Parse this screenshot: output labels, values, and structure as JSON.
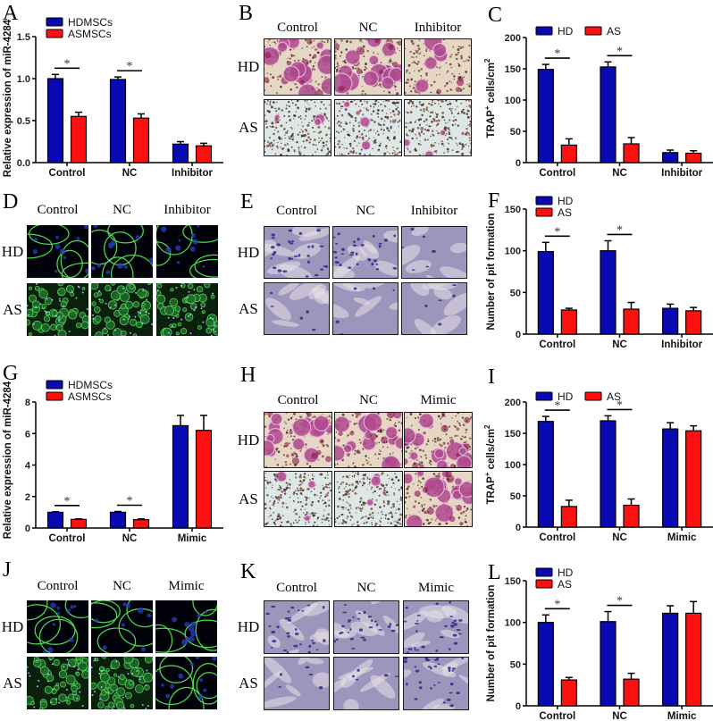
{
  "panels": {
    "A": {
      "letter": "A"
    },
    "B": {
      "letter": "B",
      "columns": [
        "Control",
        "NC",
        "Inhibitor"
      ],
      "rows": [
        "HD",
        "AS"
      ],
      "stain": "TRAP"
    },
    "C": {
      "letter": "C"
    },
    "D": {
      "letter": "D",
      "columns": [
        "Control",
        "NC",
        "Inhibitor"
      ],
      "rows": [
        "HD",
        "AS"
      ],
      "stain": "fluorescence"
    },
    "E": {
      "letter": "E",
      "columns": [
        "Control",
        "NC",
        "Inhibitor"
      ],
      "rows": [
        "HD",
        "AS"
      ],
      "stain": "pit"
    },
    "F": {
      "letter": "F"
    },
    "G": {
      "letter": "G"
    },
    "H": {
      "letter": "H",
      "columns": [
        "Control",
        "NC",
        "Mimic"
      ],
      "rows": [
        "HD",
        "AS"
      ],
      "stain": "TRAP"
    },
    "I": {
      "letter": "I"
    },
    "J": {
      "letter": "J",
      "columns": [
        "Control",
        "NC",
        "Mimic"
      ],
      "rows": [
        "HD",
        "AS"
      ],
      "stain": "fluorescence"
    },
    "K": {
      "letter": "K",
      "columns": [
        "Control",
        "NC",
        "Mimic"
      ],
      "rows": [
        "HD",
        "AS"
      ],
      "stain": "pit"
    },
    "L": {
      "letter": "L"
    }
  },
  "colors": {
    "series1": "#0a0ab4",
    "series2": "#ff1010",
    "axis": "#000000"
  },
  "chart_data": [
    {
      "id": "A",
      "type": "bar",
      "title": "",
      "categories": [
        "Control",
        "NC",
        "Inhibitor"
      ],
      "series": [
        {
          "name": "HDMSCs",
          "values": [
            1.0,
            0.99,
            0.22
          ],
          "errors": [
            0.05,
            0.03,
            0.03
          ]
        },
        {
          "name": "ASMSCs",
          "values": [
            0.55,
            0.53,
            0.2
          ],
          "errors": [
            0.05,
            0.05,
            0.03
          ]
        }
      ],
      "xlabel": "",
      "ylabel": "Relative expression of miR-4284",
      "ylim": [
        0,
        1.5
      ],
      "yticks": [
        "0.0",
        "0.5",
        "1.0",
        "1.5"
      ],
      "ytick_values": [
        0,
        0.5,
        1.0,
        1.5
      ],
      "significance": [
        {
          "category": "Control",
          "label": "*"
        },
        {
          "category": "NC",
          "label": "*"
        }
      ],
      "legend": {
        "position": "top-left",
        "layout": "vertical"
      },
      "grid": false
    },
    {
      "id": "C",
      "type": "bar",
      "title": "",
      "categories": [
        "Control",
        "NC",
        "Inhibitor"
      ],
      "series": [
        {
          "name": "HD",
          "values": [
            149,
            153,
            16
          ],
          "errors": [
            8,
            8,
            4
          ]
        },
        {
          "name": "AS",
          "values": [
            28,
            30,
            15
          ],
          "errors": [
            10,
            10,
            4
          ]
        }
      ],
      "xlabel": "",
      "ylabel": "TRAP+ cells/cm2",
      "ylim": [
        0,
        200
      ],
      "yticks": [
        "0",
        "50",
        "100",
        "150",
        "200"
      ],
      "ytick_values": [
        0,
        50,
        100,
        150,
        200
      ],
      "significance": [
        {
          "category": "Control",
          "label": "*"
        },
        {
          "category": "NC",
          "label": "*"
        }
      ],
      "legend": {
        "position": "top",
        "layout": "horizontal"
      },
      "grid": false
    },
    {
      "id": "F",
      "type": "bar",
      "title": "",
      "categories": [
        "Control",
        "NC",
        "Inhibitor"
      ],
      "series": [
        {
          "name": "HD",
          "values": [
            99,
            100,
            31
          ],
          "errors": [
            11,
            12,
            5
          ]
        },
        {
          "name": "AS",
          "values": [
            29,
            30,
            28
          ],
          "errors": [
            2,
            8,
            4
          ]
        }
      ],
      "xlabel": "",
      "ylabel": "Number of pit formation",
      "ylim": [
        0,
        150
      ],
      "yticks": [
        "0",
        "50",
        "100",
        "150"
      ],
      "ytick_values": [
        0,
        50,
        100,
        150
      ],
      "significance": [
        {
          "category": "Control",
          "label": "*"
        },
        {
          "category": "NC",
          "label": "*"
        }
      ],
      "legend": {
        "position": "top-left",
        "layout": "vertical"
      },
      "grid": false
    },
    {
      "id": "G",
      "type": "bar",
      "title": "",
      "categories": [
        "Control",
        "NC",
        "Mimic"
      ],
      "series": [
        {
          "name": "HDMSCs",
          "values": [
            1.0,
            1.0,
            6.5
          ],
          "errors": [
            0.03,
            0.05,
            0.65
          ]
        },
        {
          "name": "ASMSCs",
          "values": [
            0.55,
            0.53,
            6.2
          ],
          "errors": [
            0.03,
            0.05,
            0.95
          ]
        }
      ],
      "xlabel": "",
      "ylabel": "Relative expression of miR-4284",
      "ylim": [
        0,
        8
      ],
      "yticks": [
        "0",
        "2",
        "4",
        "6",
        "8"
      ],
      "ytick_values": [
        0,
        2,
        4,
        6,
        8
      ],
      "significance": [
        {
          "category": "Control",
          "label": "*"
        },
        {
          "category": "NC",
          "label": "*"
        }
      ],
      "legend": {
        "position": "top-left",
        "layout": "vertical"
      },
      "grid": false
    },
    {
      "id": "I",
      "type": "bar",
      "title": "",
      "categories": [
        "Control",
        "NC",
        "Mimic"
      ],
      "series": [
        {
          "name": "HD",
          "values": [
            169,
            170,
            157
          ],
          "errors": [
            8,
            8,
            10
          ]
        },
        {
          "name": "AS",
          "values": [
            33,
            35,
            154
          ],
          "errors": [
            10,
            10,
            8
          ]
        }
      ],
      "xlabel": "",
      "ylabel": "TRAP+ cells/cm2",
      "ylim": [
        0,
        200
      ],
      "yticks": [
        "0",
        "50",
        "100",
        "150",
        "200"
      ],
      "ytick_values": [
        0,
        50,
        100,
        150,
        200
      ],
      "significance": [
        {
          "category": "Control",
          "label": "*"
        },
        {
          "category": "NC",
          "label": "*"
        }
      ],
      "legend": {
        "position": "top",
        "layout": "horizontal"
      },
      "grid": false
    },
    {
      "id": "L",
      "type": "bar",
      "title": "",
      "categories": [
        "Control",
        "NC",
        "Mimic"
      ],
      "series": [
        {
          "name": "HD",
          "values": [
            100,
            101,
            111
          ],
          "errors": [
            9,
            12,
            9
          ]
        },
        {
          "name": "AS",
          "values": [
            31,
            32,
            111
          ],
          "errors": [
            3,
            7,
            14
          ]
        }
      ],
      "xlabel": "",
      "ylabel": "Number of pit formation",
      "ylim": [
        0,
        150
      ],
      "yticks": [
        "0",
        "50",
        "100",
        "150"
      ],
      "ytick_values": [
        0,
        50,
        100,
        150
      ],
      "significance": [
        {
          "category": "Control",
          "label": "*"
        },
        {
          "category": "NC",
          "label": "*"
        }
      ],
      "legend": {
        "position": "top-left",
        "layout": "vertical"
      },
      "grid": false
    }
  ]
}
